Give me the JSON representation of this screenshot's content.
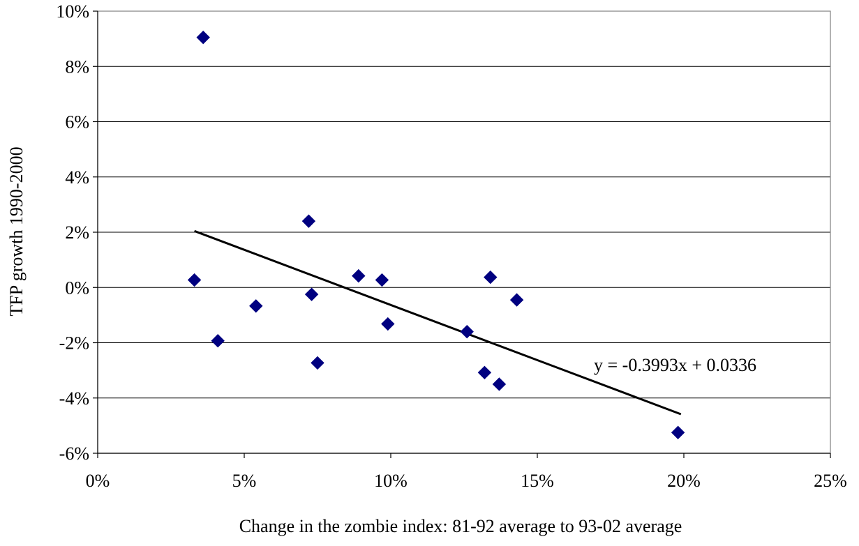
{
  "chart_data": {
    "type": "scatter",
    "title": "",
    "xlabel": "Change in the zombie index: 81-92 average to 93-02 average",
    "ylabel": "TFP growth 1990-2000",
    "xlim": [
      0,
      0.25
    ],
    "ylim": [
      -0.06,
      0.1
    ],
    "x_ticks": [
      0,
      0.05,
      0.1,
      0.15,
      0.2,
      0.25
    ],
    "x_tick_labels": [
      "0%",
      "5%",
      "10%",
      "15%",
      "20%",
      "25%"
    ],
    "y_ticks": [
      -0.06,
      -0.04,
      -0.02,
      0,
      0.02,
      0.04,
      0.06,
      0.08,
      0.1
    ],
    "y_tick_labels": [
      "-6%",
      "-4%",
      "-2%",
      "0%",
      "2%",
      "4%",
      "6%",
      "8%",
      "10%"
    ],
    "grid": "horizontal",
    "marker": "diamond",
    "marker_color": "#000080",
    "line_color": "#000000",
    "points": [
      {
        "x": 0.036,
        "y": 0.0905
      },
      {
        "x": 0.072,
        "y": 0.024
      },
      {
        "x": 0.033,
        "y": 0.0027
      },
      {
        "x": 0.041,
        "y": -0.0193
      },
      {
        "x": 0.054,
        "y": -0.0067
      },
      {
        "x": 0.073,
        "y": -0.0025
      },
      {
        "x": 0.075,
        "y": -0.0273
      },
      {
        "x": 0.089,
        "y": 0.0042
      },
      {
        "x": 0.097,
        "y": 0.0027
      },
      {
        "x": 0.099,
        "y": -0.0132
      },
      {
        "x": 0.126,
        "y": -0.016
      },
      {
        "x": 0.132,
        "y": -0.0308
      },
      {
        "x": 0.134,
        "y": 0.0037
      },
      {
        "x": 0.137,
        "y": -0.035
      },
      {
        "x": 0.143,
        "y": -0.0045
      },
      {
        "x": 0.198,
        "y": -0.0525
      }
    ],
    "trendline": {
      "slope": -0.3993,
      "intercept": 0.0336,
      "x_range": [
        0.033,
        0.199
      ],
      "equation_label": "y = -0.3993x + 0.0336"
    }
  }
}
